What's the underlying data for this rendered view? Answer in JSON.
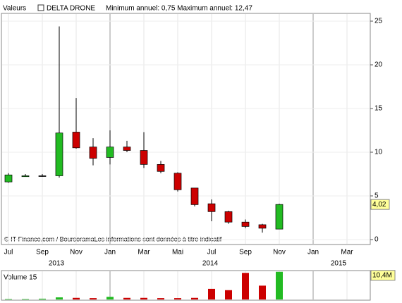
{
  "chart_data": {
    "type": "candlestick",
    "header": "Valeurs",
    "name": "DELTA DRONE",
    "subtitle": "Minimum annuel: 0,75 Maximum annuel: 12,47",
    "footer": "© IT-Finance.com / BoursoramaLes informations sont données à titre indicatif",
    "x_labels": [
      "Jul",
      "Sep",
      "Nov",
      "Jan",
      "Mar",
      "Mai",
      "Jul",
      "Sep",
      "Nov",
      "Jan",
      "Mar"
    ],
    "years": [
      "2013",
      "2014",
      "2015"
    ],
    "open": [
      6.6,
      7.2,
      7.3,
      7.3,
      12.3,
      10.6,
      9.4,
      10.6,
      10.2,
      8.6,
      7.6,
      5.9,
      4.1,
      3.2,
      2.0,
      1.7,
      1.2
    ],
    "close": [
      7.4,
      7.3,
      7.3,
      12.2,
      10.5,
      9.3,
      10.6,
      10.2,
      8.6,
      7.8,
      5.7,
      4.0,
      3.2,
      2.0,
      1.5,
      1.3,
      4.02
    ],
    "high": [
      7.6,
      7.5,
      7.5,
      24.4,
      16.2,
      11.6,
      12.5,
      11.3,
      12.3,
      9.0,
      7.7,
      5.9,
      4.6,
      3.3,
      2.3,
      1.8,
      4.1
    ],
    "low": [
      6.5,
      7.2,
      7.2,
      7.1,
      10.4,
      8.5,
      8.6,
      10.0,
      8.2,
      7.6,
      5.5,
      3.8,
      2.1,
      1.8,
      1.3,
      0.8,
      1.2
    ],
    "up_color": "#22bb22",
    "down_color": "#cc0000",
    "ylim": [
      0,
      27
    ],
    "yticks": [
      0,
      5,
      10,
      15,
      20,
      25
    ],
    "last": 4.02,
    "last_label": "4,02",
    "volume_title": "Volume 15",
    "volume": [
      0.2,
      0.2,
      0.3,
      0.8,
      0.6,
      0.5,
      1.0,
      0.6,
      0.6,
      0.5,
      0.5,
      0.6,
      4.0,
      3.5,
      10.0,
      5.2,
      10.4
    ],
    "vlim": [
      0,
      10.6
    ],
    "volume_last": 10.4,
    "volume_last_label": "10,4M"
  }
}
